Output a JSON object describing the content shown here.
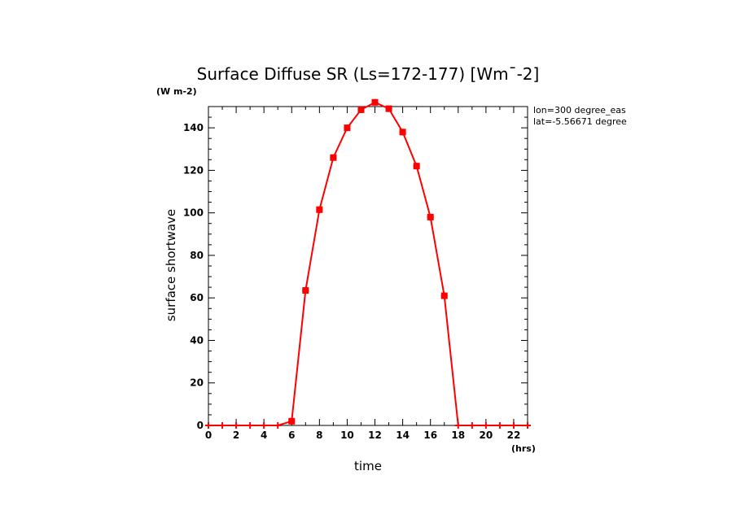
{
  "chart_data": {
    "type": "line",
    "title": "Surface Diffuse SR (Ls=172-177) [Wm¯-2]",
    "y_units": "(W m-2)",
    "x_units": "(hrs)",
    "xlabel": "time",
    "ylabel": "surface shortwave",
    "xlim": [
      0,
      23
    ],
    "ylim": [
      0,
      150
    ],
    "x_ticks": [
      0,
      2,
      4,
      6,
      8,
      10,
      12,
      14,
      16,
      18,
      20,
      22
    ],
    "y_ticks": [
      0,
      20,
      40,
      60,
      80,
      100,
      120,
      140
    ],
    "grid": false,
    "annotations": [
      "lon=300 degree_eas",
      "lat=-5.56671 degree"
    ],
    "series": [
      {
        "color": "#ff0000",
        "x": [
          0,
          1,
          2,
          3,
          4,
          5,
          6,
          7,
          8,
          9,
          10,
          11,
          12,
          13,
          14,
          15,
          16,
          17,
          18,
          19,
          20,
          21,
          22,
          23
        ],
        "values": [
          0,
          0,
          0,
          0,
          0,
          0,
          2,
          63.5,
          101.5,
          126,
          140,
          148.5,
          152,
          149,
          138,
          122,
          98,
          61,
          0,
          0,
          0,
          0,
          0,
          0
        ]
      }
    ]
  }
}
